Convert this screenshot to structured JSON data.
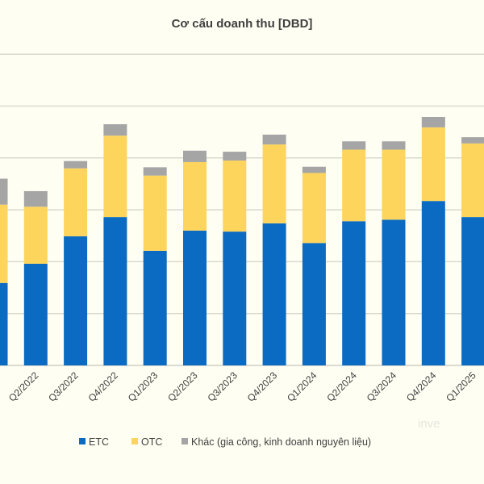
{
  "chart_data": {
    "type": "bar",
    "stacked": true,
    "title": "Cơ cấu doanh thu [DBD]",
    "xlabel": "",
    "ylabel": "",
    "categories": [
      "",
      "Q2/2022",
      "Q3/2022",
      "Q4/2022",
      "Q1/2023",
      "Q2/2023",
      "Q3/2023",
      "Q4/2023",
      "Q1/2024",
      "Q2/2024",
      "Q3/2024",
      "Q4/2024",
      "Q1/2025"
    ],
    "ylim": [
      0,
      6
    ],
    "grid": true,
    "legend_position": "bottom",
    "series": [
      {
        "name": "ETC",
        "color": "#0b6bc2",
        "values": [
          1.59,
          1.96,
          2.49,
          2.86,
          2.21,
          2.6,
          2.58,
          2.74,
          2.36,
          2.78,
          2.81,
          3.17,
          2.86
        ]
      },
      {
        "name": "OTC",
        "color": "#fdd45c",
        "values": [
          1.51,
          1.1,
          1.31,
          1.57,
          1.45,
          1.32,
          1.37,
          1.52,
          1.35,
          1.38,
          1.35,
          1.42,
          1.42
        ]
      },
      {
        "name": "Khác (gia công, kinh doanh nguyên liệu)",
        "color": "#a5a5a5",
        "values": [
          0.5,
          0.3,
          0.14,
          0.22,
          0.16,
          0.22,
          0.17,
          0.19,
          0.12,
          0.16,
          0.16,
          0.2,
          0.12
        ]
      }
    ]
  },
  "watermark": "inve",
  "colors": {
    "background": "#fefef2",
    "grid": "#d9d9d0",
    "text": "#404040"
  }
}
